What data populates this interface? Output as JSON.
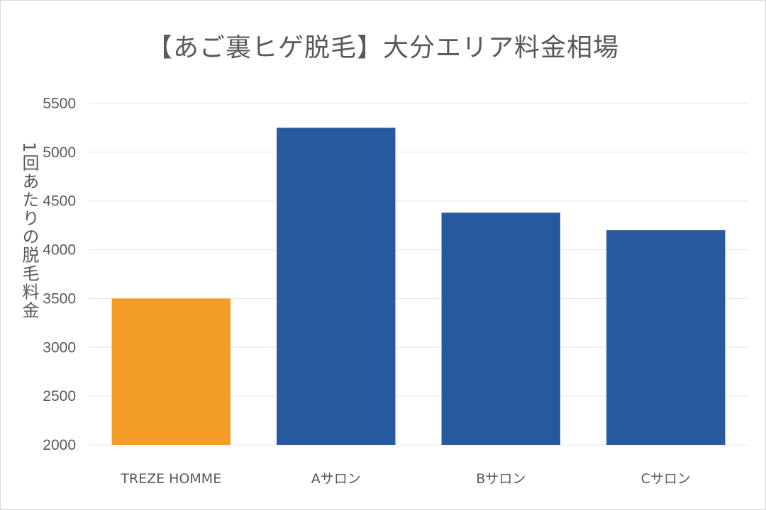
{
  "chart_data": {
    "type": "bar",
    "title": "【あご裏ヒゲ脱毛】大分エリア料金相場",
    "xlabel": "",
    "ylabel": "1回あたりの脱毛料金",
    "categories": [
      "TREZE HOMME",
      "Aサロン",
      "Bサロン",
      "Cサロン"
    ],
    "values": [
      3500,
      5250,
      4380,
      4200
    ],
    "ylim": [
      2000,
      5500
    ],
    "yticks": [
      2000,
      2500,
      3000,
      3500,
      4000,
      4500,
      5000,
      5500
    ],
    "grid": true,
    "legend": "none",
    "colors": {
      "highlight": "#F39C27",
      "default": "#27599E",
      "grid": "#e6e6e6",
      "text": "#595959"
    },
    "highlight_index": 0
  }
}
